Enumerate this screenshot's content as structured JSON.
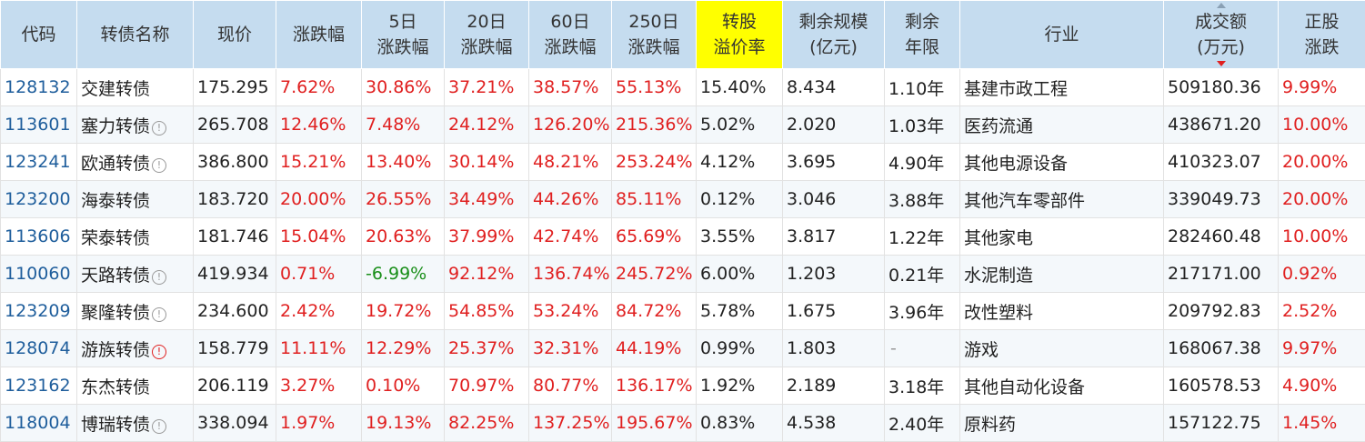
{
  "headers": [
    "代码",
    "转债名称",
    "现价",
    "涨跌幅",
    "5日\n涨跌幅",
    "20日\n涨跌幅",
    "60日\n涨跌幅",
    "250日\n涨跌幅",
    "转股\n溢价率",
    "剩余规模\n(亿元)",
    "剩余\n年限",
    "行业",
    "成交额\n(万元)",
    "正股\n涨跌"
  ],
  "highlight_header_color": "#ffff00",
  "header_bg": "#c5dcef",
  "up_color": "#e02020",
  "down_color": "#1a8f1a",
  "code_color": "#1f5e9c",
  "rows": [
    {
      "code": "128132",
      "name": "交建转债",
      "icon": "",
      "price": "175.295",
      "chg": "7.62%",
      "chg5": "30.86%",
      "chg20": "37.21%",
      "chg60": "38.57%",
      "chg250": "55.13%",
      "premium": "15.40%",
      "scale": "8.434",
      "years": "1.10年",
      "industry": "基建市政工程",
      "turnover": "509180.36",
      "stock_chg": "9.99%"
    },
    {
      "code": "113601",
      "name": "塞力转债",
      "icon": "info-icon",
      "price": "265.708",
      "chg": "12.46%",
      "chg5": "7.48%",
      "chg20": "24.12%",
      "chg60": "126.20%",
      "chg250": "215.36%",
      "premium": "5.02%",
      "scale": "2.020",
      "years": "1.03年",
      "industry": "医药流通",
      "turnover": "438671.20",
      "stock_chg": "10.00%"
    },
    {
      "code": "123241",
      "name": "欧通转债",
      "icon": "info-icon",
      "price": "386.800",
      "chg": "15.21%",
      "chg5": "13.40%",
      "chg20": "30.14%",
      "chg60": "48.21%",
      "chg250": "253.24%",
      "premium": "4.12%",
      "scale": "3.695",
      "years": "4.90年",
      "industry": "其他电源设备",
      "turnover": "410323.07",
      "stock_chg": "20.00%"
    },
    {
      "code": "123200",
      "name": "海泰转债",
      "icon": "",
      "price": "183.720",
      "chg": "20.00%",
      "chg5": "26.55%",
      "chg20": "34.49%",
      "chg60": "44.26%",
      "chg250": "85.11%",
      "premium": "0.12%",
      "scale": "3.046",
      "years": "3.88年",
      "industry": "其他汽车零部件",
      "turnover": "339049.73",
      "stock_chg": "20.00%"
    },
    {
      "code": "113606",
      "name": "荣泰转债",
      "icon": "",
      "price": "181.746",
      "chg": "15.04%",
      "chg5": "20.63%",
      "chg20": "37.99%",
      "chg60": "42.74%",
      "chg250": "65.69%",
      "premium": "3.55%",
      "scale": "3.817",
      "years": "1.22年",
      "industry": "其他家电",
      "turnover": "282460.48",
      "stock_chg": "10.00%"
    },
    {
      "code": "110060",
      "name": "天路转债",
      "icon": "info-icon",
      "price": "419.934",
      "chg": "0.71%",
      "chg5": "-6.99%",
      "chg20": "92.12%",
      "chg60": "136.74%",
      "chg250": "245.72%",
      "premium": "6.00%",
      "scale": "1.203",
      "years": "0.21年",
      "industry": "水泥制造",
      "turnover": "217171.00",
      "stock_chg": "0.92%"
    },
    {
      "code": "123209",
      "name": "聚隆转债",
      "icon": "info-icon",
      "price": "234.600",
      "chg": "2.42%",
      "chg5": "19.72%",
      "chg20": "54.85%",
      "chg60": "53.24%",
      "chg250": "84.72%",
      "premium": "5.78%",
      "scale": "1.675",
      "years": "3.96年",
      "industry": "改性塑料",
      "turnover": "209792.83",
      "stock_chg": "2.52%"
    },
    {
      "code": "128074",
      "name": "游族转债",
      "icon": "warn-icon",
      "price": "158.779",
      "chg": "11.11%",
      "chg5": "12.29%",
      "chg20": "25.37%",
      "chg60": "32.31%",
      "chg250": "44.19%",
      "premium": "0.99%",
      "scale": "1.803",
      "years": "-",
      "industry": "游戏",
      "turnover": "168067.38",
      "stock_chg": "9.97%"
    },
    {
      "code": "123162",
      "name": "东杰转债",
      "icon": "",
      "price": "206.119",
      "chg": "3.27%",
      "chg5": "0.10%",
      "chg20": "70.97%",
      "chg60": "80.77%",
      "chg250": "136.17%",
      "premium": "1.92%",
      "scale": "2.189",
      "years": "3.18年",
      "industry": "其他自动化设备",
      "turnover": "160578.53",
      "stock_chg": "4.90%"
    },
    {
      "code": "118004",
      "name": "博瑞转债",
      "icon": "info-icon",
      "price": "338.094",
      "chg": "1.97%",
      "chg5": "19.13%",
      "chg20": "82.25%",
      "chg60": "137.25%",
      "chg250": "195.67%",
      "premium": "0.83%",
      "scale": "4.538",
      "years": "2.40年",
      "industry": "原料药",
      "turnover": "157122.75",
      "stock_chg": "1.45%"
    }
  ]
}
